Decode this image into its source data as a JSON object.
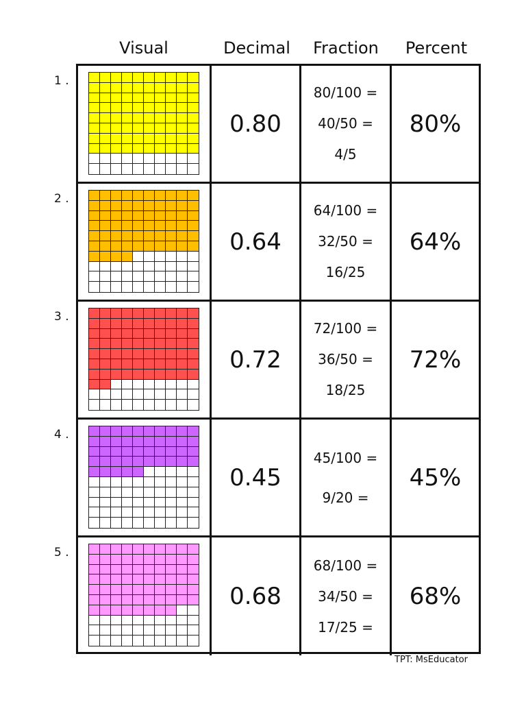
{
  "headers": {
    "visual": "Visual",
    "decimal": "Decimal",
    "fraction": "Fraction",
    "percent": "Percent"
  },
  "rows": [
    {
      "number": "1 .",
      "filled": 80,
      "color": "#ffff00",
      "decimal": "0.80",
      "fractions": [
        "80/100 =",
        "40/50 =",
        "4/5"
      ],
      "percent": "80%"
    },
    {
      "number": "2 .",
      "filled": 64,
      "color": "#ffbe00",
      "decimal": "0.64",
      "fractions": [
        "64/100 =",
        "32/50 =",
        "16/25"
      ],
      "percent": "64%"
    },
    {
      "number": "3 .",
      "filled": 72,
      "color": "#ff5050",
      "decimal": "0.72",
      "fractions": [
        "72/100 =",
        "36/50 =",
        "18/25"
      ],
      "percent": "72%"
    },
    {
      "number": "4 .",
      "filled": 45,
      "color": "#cc66ff",
      "decimal": "0.45",
      "fractions": [
        "45/100 =",
        "9/20 ="
      ],
      "percent": "45%"
    },
    {
      "number": "5 .",
      "filled": 68,
      "color": "#ff99ff",
      "decimal": "0.68",
      "fractions": [
        "68/100 =",
        "34/50 =",
        "17/25 ="
      ],
      "percent": "68%"
    }
  ],
  "footer": "TPT: MsEducator"
}
